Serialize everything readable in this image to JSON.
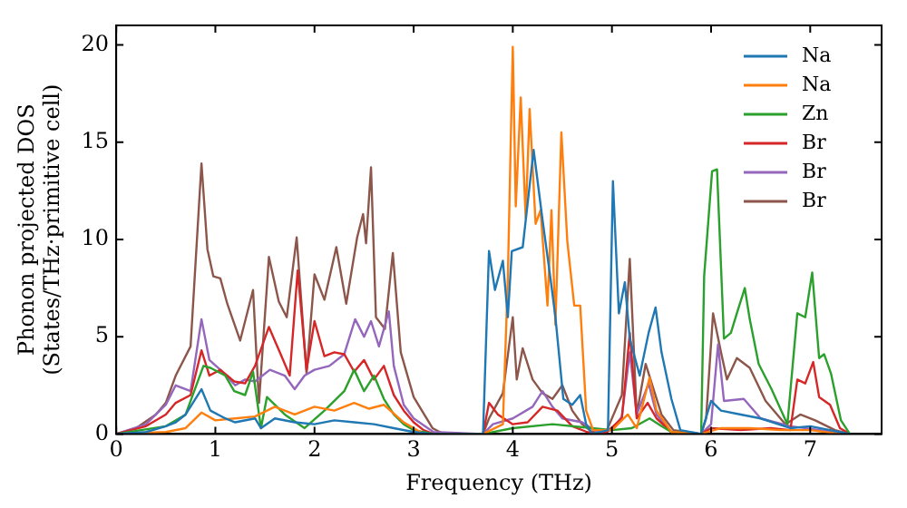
{
  "chart_data": {
    "type": "line",
    "xlabel": "Frequency (THz)",
    "ylabel": "Phonon projected DOS\n(States/THz·primitive cell)",
    "xlim": [
      0,
      7.72
    ],
    "xticks": [
      0,
      1,
      2,
      3,
      4,
      5,
      6,
      7
    ],
    "ylim": [
      0,
      21
    ],
    "yticks": [
      0,
      5,
      10,
      15,
      20
    ],
    "grid": false,
    "legend": "top right",
    "marker": "none",
    "line_style": "solid",
    "series": [
      {
        "name": "Na",
        "color": "#1f77b4",
        "x": [
          0,
          0.3,
          0.5,
          0.6,
          0.7,
          0.86,
          0.95,
          1.1,
          1.2,
          1.4,
          1.46,
          1.6,
          1.8,
          2.0,
          2.2,
          2.4,
          2.6,
          2.8,
          3.0,
          3.2,
          3.7,
          3.76,
          3.82,
          3.9,
          3.95,
          3.99,
          4.1,
          4.21,
          4.3,
          4.38,
          4.43,
          4.51,
          4.6,
          4.68,
          4.74,
          4.8,
          4.96,
          5.01,
          5.07,
          5.13,
          5.18,
          5.28,
          5.37,
          5.44,
          5.5,
          5.6,
          5.69,
          5.9,
          6.0,
          6.1,
          6.3,
          6.5,
          6.8,
          7.0,
          7.2,
          7.4
        ],
        "values": [
          0,
          0.1,
          0.4,
          0.6,
          1.0,
          2.3,
          1.2,
          0.8,
          0.6,
          0.8,
          0.3,
          0.8,
          0.6,
          0.5,
          0.7,
          0.6,
          0.5,
          0.3,
          0.1,
          0,
          0,
          9.4,
          7.4,
          8.9,
          6.0,
          9.4,
          9.6,
          14.6,
          11.0,
          8.0,
          6.0,
          1.8,
          1.5,
          2.0,
          0.5,
          0,
          0.2,
          13.0,
          6.2,
          7.8,
          4.9,
          3.0,
          5.2,
          6.5,
          4.2,
          1.8,
          0.2,
          0,
          1.7,
          1.2,
          1.0,
          0.8,
          0.3,
          0.4,
          0.2,
          0
        ]
      },
      {
        "name": "Na",
        "color": "#ff7f0e",
        "x": [
          0,
          0.5,
          0.7,
          0.86,
          1.0,
          1.2,
          1.4,
          1.6,
          1.8,
          2.0,
          2.2,
          2.4,
          2.55,
          2.7,
          2.9,
          3.1,
          3.7,
          3.9,
          3.95,
          4.0,
          4.03,
          4.08,
          4.13,
          4.17,
          4.23,
          4.28,
          4.35,
          4.39,
          4.43,
          4.49,
          4.55,
          4.62,
          4.68,
          4.74,
          4.81,
          5.0,
          5.16,
          5.25,
          5.38,
          5.45,
          5.6,
          5.9,
          6.1,
          6.4,
          6.7,
          7.0,
          7.3
        ],
        "values": [
          0,
          0.1,
          0.3,
          1.1,
          0.7,
          0.8,
          0.9,
          1.4,
          1.0,
          1.4,
          1.2,
          1.6,
          1.3,
          1.5,
          0.6,
          0,
          0,
          0.5,
          8.0,
          19.9,
          11.7,
          17.3,
          11.1,
          16.7,
          10.8,
          11.5,
          6.6,
          11.5,
          5.6,
          15.5,
          9.9,
          6.6,
          6.6,
          1.2,
          0.2,
          0.2,
          1.0,
          0.3,
          2.9,
          1.2,
          0.1,
          0,
          0.3,
          0.3,
          0.2,
          0.2,
          0
        ]
      },
      {
        "name": "Zn",
        "color": "#2ca02c",
        "x": [
          0,
          0.5,
          0.7,
          0.88,
          0.95,
          1.1,
          1.19,
          1.3,
          1.38,
          1.46,
          1.52,
          1.7,
          1.9,
          2.1,
          2.3,
          2.4,
          2.5,
          2.6,
          2.7,
          2.8,
          2.9,
          3.0,
          3.2,
          3.7,
          4.0,
          4.4,
          4.8,
          5.0,
          5.2,
          5.38,
          5.5,
          5.6,
          5.9,
          5.93,
          6.01,
          6.06,
          6.13,
          6.2,
          6.26,
          6.34,
          6.39,
          6.48,
          6.61,
          6.77,
          6.87,
          6.95,
          7.02,
          7.09,
          7.14,
          7.21,
          7.31,
          7.4
        ],
        "values": [
          0,
          0.4,
          1.0,
          3.5,
          3.4,
          3.0,
          2.2,
          2.0,
          3.2,
          0.3,
          1.9,
          1.0,
          0.3,
          1.2,
          2.2,
          3.3,
          2.2,
          3.0,
          1.8,
          1.0,
          0.5,
          0.2,
          0,
          0,
          0.3,
          0.5,
          0.3,
          0.2,
          0.3,
          0.8,
          0.4,
          0.1,
          0,
          8.1,
          13.5,
          13.6,
          4.9,
          5.2,
          6.2,
          7.5,
          5.9,
          3.6,
          2.3,
          0.5,
          6.2,
          6.0,
          8.3,
          3.9,
          4.1,
          3.1,
          0.7,
          0
        ]
      },
      {
        "name": "Br",
        "color": "#d62728",
        "x": [
          0,
          0.3,
          0.5,
          0.6,
          0.75,
          0.86,
          0.94,
          1.05,
          1.19,
          1.3,
          1.4,
          1.54,
          1.65,
          1.75,
          1.83,
          1.92,
          2.0,
          2.1,
          2.2,
          2.3,
          2.4,
          2.5,
          2.6,
          2.7,
          2.8,
          2.9,
          3.0,
          3.1,
          3.2,
          3.7,
          3.76,
          3.85,
          4.0,
          4.15,
          4.3,
          4.45,
          4.6,
          4.75,
          4.85,
          4.95,
          5.1,
          5.18,
          5.25,
          5.36,
          5.45,
          5.6,
          5.9,
          6.0,
          6.3,
          6.6,
          6.8,
          6.87,
          6.95,
          7.03,
          7.09,
          7.2,
          7.3,
          7.4
        ],
        "values": [
          0,
          0.4,
          1.0,
          1.6,
          2.0,
          4.3,
          3.0,
          3.3,
          2.7,
          2.6,
          3.5,
          5.5,
          4.2,
          3.0,
          8.4,
          3.3,
          5.8,
          4.0,
          4.2,
          4.1,
          3.2,
          3.8,
          2.8,
          3.5,
          2.0,
          1.2,
          0.6,
          0.2,
          0,
          0,
          1.6,
          1.0,
          0.5,
          0.6,
          1.4,
          1.2,
          0.4,
          0.1,
          0,
          0.1,
          0.8,
          5.2,
          0.8,
          1.6,
          0.8,
          0.1,
          0,
          0.3,
          0.2,
          0.3,
          0.2,
          2.8,
          2.6,
          3.7,
          1.9,
          1.5,
          0.3,
          0
        ]
      },
      {
        "name": "Br",
        "color": "#9467bd",
        "x": [
          0,
          0.3,
          0.5,
          0.6,
          0.75,
          0.86,
          0.94,
          1.05,
          1.2,
          1.3,
          1.4,
          1.55,
          1.7,
          1.8,
          1.9,
          2.0,
          2.15,
          2.3,
          2.41,
          2.5,
          2.57,
          2.65,
          2.75,
          2.8,
          2.9,
          3.0,
          3.2,
          3.7,
          3.8,
          4.0,
          4.2,
          4.3,
          4.4,
          4.5,
          4.7,
          4.85,
          5.0,
          5.1,
          5.18,
          5.25,
          5.37,
          5.45,
          5.6,
          5.9,
          6.0,
          6.07,
          6.13,
          6.33,
          6.5,
          6.8,
          7.1,
          7.4
        ],
        "values": [
          0,
          0.5,
          1.5,
          2.5,
          2.2,
          5.9,
          3.8,
          3.3,
          2.5,
          2.8,
          2.7,
          3.3,
          3.0,
          2.3,
          3.0,
          3.3,
          3.5,
          4.1,
          5.9,
          5.0,
          5.8,
          4.5,
          6.3,
          3.5,
          1.5,
          0.8,
          0.1,
          0,
          0.5,
          0.8,
          1.4,
          2.2,
          1.4,
          0.8,
          0.6,
          0.1,
          0.2,
          0.9,
          4.2,
          1.0,
          2.6,
          1.0,
          0.1,
          0,
          0.5,
          4.6,
          1.7,
          1.8,
          0.8,
          0.4,
          0.2,
          0
        ]
      },
      {
        "name": "Br",
        "color": "#8c564b",
        "x": [
          0,
          0.2,
          0.4,
          0.5,
          0.6,
          0.75,
          0.86,
          0.92,
          0.98,
          1.05,
          1.12,
          1.25,
          1.38,
          1.44,
          1.54,
          1.64,
          1.72,
          1.82,
          1.92,
          2.0,
          2.1,
          2.22,
          2.32,
          2.43,
          2.49,
          2.52,
          2.57,
          2.62,
          2.71,
          2.79,
          2.87,
          3.0,
          3.19,
          3.3,
          3.7,
          3.76,
          3.9,
          4.0,
          4.04,
          4.1,
          4.2,
          4.3,
          4.4,
          4.5,
          4.6,
          4.7,
          4.8,
          4.95,
          5.1,
          5.18,
          5.25,
          5.34,
          5.42,
          5.5,
          5.62,
          5.9,
          5.95,
          6.02,
          6.1,
          6.16,
          6.26,
          6.39,
          6.55,
          6.75,
          6.9,
          7.05,
          7.25,
          7.4
        ],
        "values": [
          0,
          0.3,
          1.0,
          1.6,
          3.0,
          4.5,
          13.9,
          9.5,
          8.1,
          8.0,
          6.7,
          4.8,
          7.4,
          1.6,
          9.1,
          6.8,
          6.0,
          10.1,
          3.1,
          8.2,
          6.9,
          9.6,
          6.7,
          10.1,
          11.3,
          9.8,
          13.7,
          6.0,
          5.4,
          9.3,
          4.2,
          1.9,
          0.3,
          0,
          0,
          0.8,
          2.1,
          6.0,
          2.8,
          4.4,
          2.8,
          2.1,
          1.8,
          2.5,
          1.2,
          0.5,
          0.1,
          0.2,
          2.0,
          9.0,
          1.0,
          3.6,
          2.3,
          1.0,
          0.2,
          0,
          0.8,
          6.2,
          4.2,
          2.8,
          3.9,
          3.4,
          1.7,
          0.5,
          1.0,
          0.7,
          0.2,
          0
        ]
      }
    ]
  }
}
